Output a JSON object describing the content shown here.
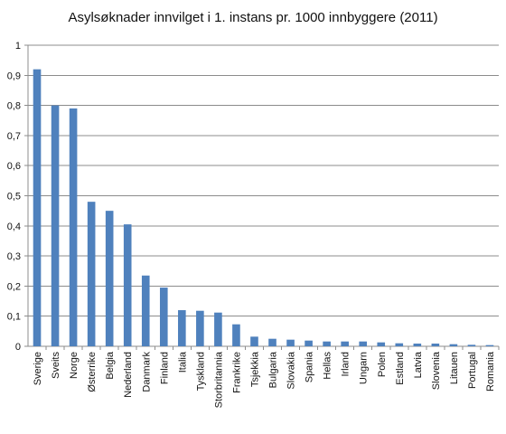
{
  "chart_data": {
    "type": "bar",
    "title": "Asylsøknader innvilget i 1. instans pr. 1000 innbyggere (2011)",
    "xlabel": "",
    "ylabel": "",
    "ylim": [
      0,
      1
    ],
    "yticks": [
      "0",
      "0,1",
      "0,2",
      "0,3",
      "0,4",
      "0,5",
      "0,6",
      "0,7",
      "0,8",
      "0,9",
      "1"
    ],
    "grid": true,
    "legend": "none",
    "bar_color": "#4F81BD",
    "categories": [
      "Sverige",
      "Sveits",
      "Norge",
      "Østerrike",
      "Belgia",
      "Nederland",
      "Danmark",
      "Finland",
      "Italia",
      "Tyskland",
      "Storbritannia",
      "Frankrike",
      "Tsjekkia",
      "Bulgaria",
      "Slovakia",
      "Spania",
      "Hellas",
      "Irland",
      "Ungarn",
      "Polen",
      "Estland",
      "Latvia",
      "Slovenia",
      "Litauen",
      "Portugal",
      "Romania"
    ],
    "values": [
      0.92,
      0.8,
      0.79,
      0.48,
      0.45,
      0.405,
      0.235,
      0.195,
      0.12,
      0.118,
      0.112,
      0.073,
      0.032,
      0.025,
      0.022,
      0.019,
      0.016,
      0.016,
      0.016,
      0.013,
      0.01,
      0.009,
      0.009,
      0.007,
      0.005,
      0.004
    ]
  }
}
